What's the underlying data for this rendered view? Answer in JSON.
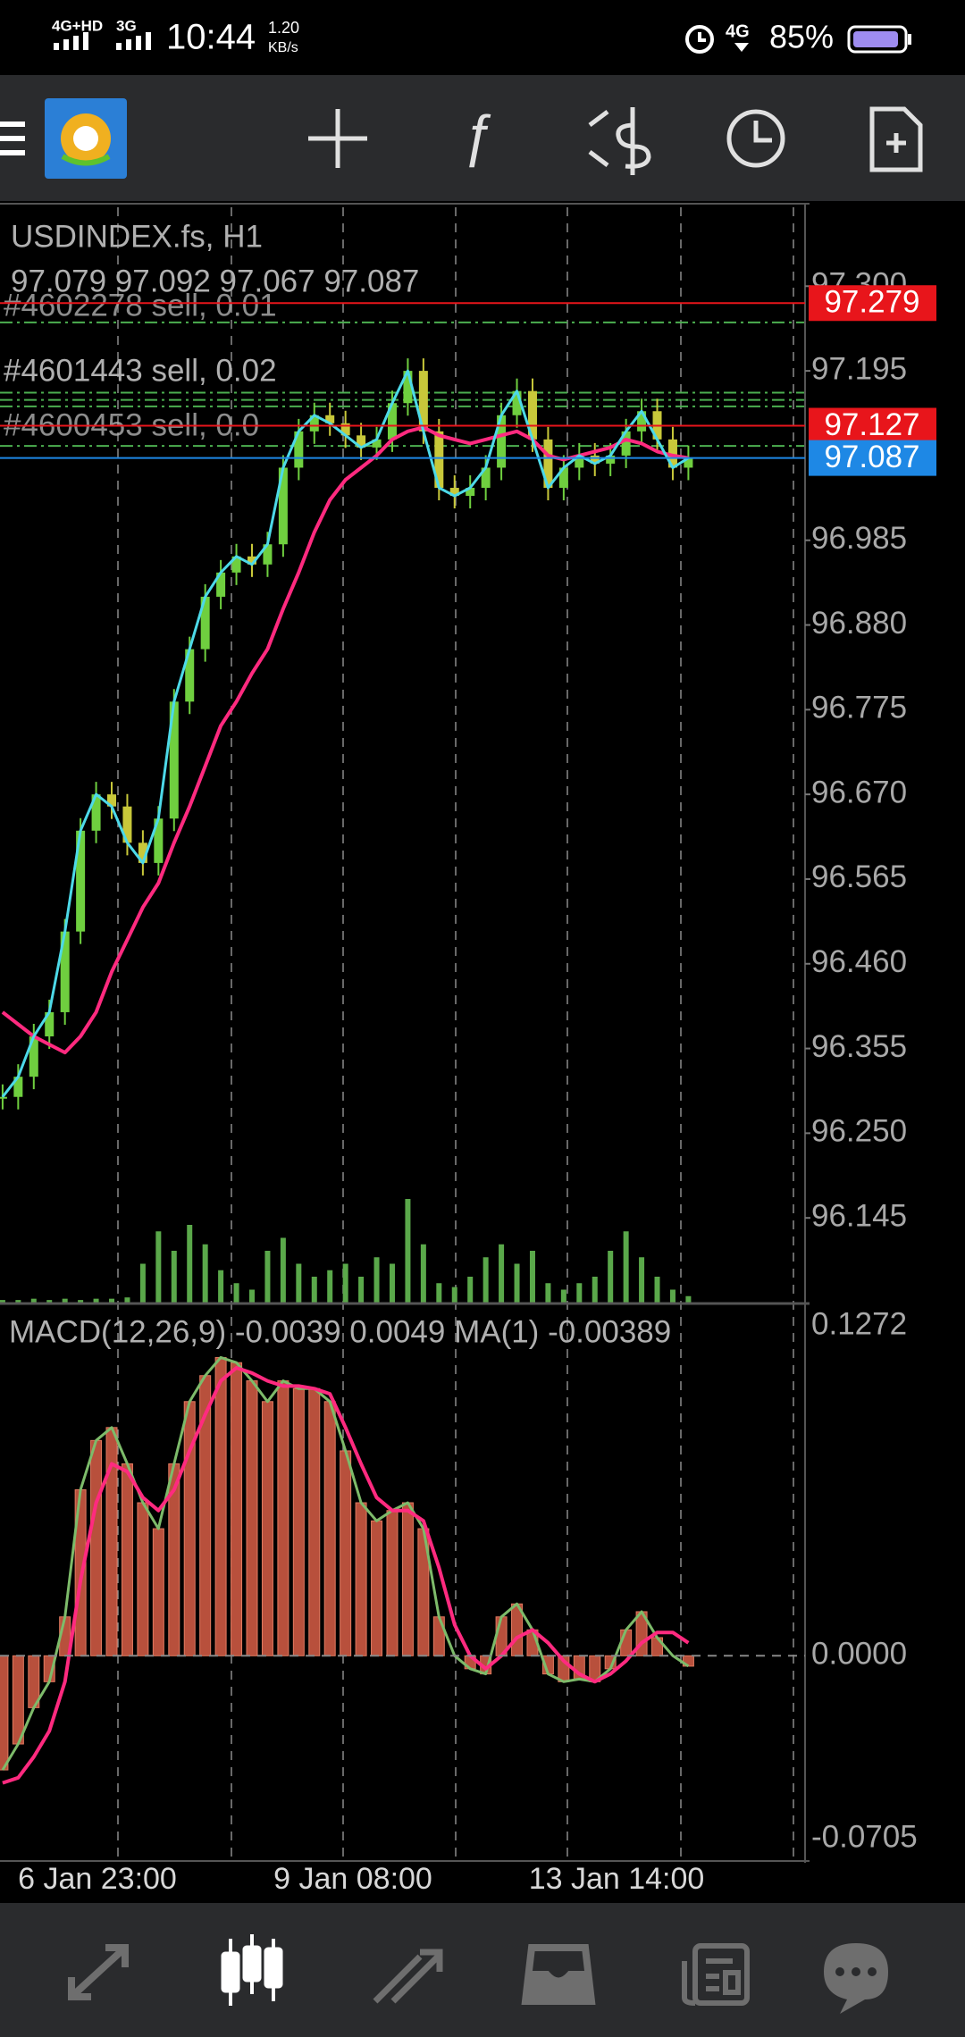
{
  "status_bar": {
    "network1": "4G+HD",
    "network2": "3G",
    "time": "10:44",
    "speed": "1.20",
    "speed_unit": "KB/s",
    "network3": "4G",
    "battery": "85%"
  },
  "chart": {
    "symbol": "USDINDEX.fs, H1",
    "ohlc": "97.079 97.092 97.067 97.087",
    "orders": [
      "#4602278 sell, 0.01",
      "#4601443 sell, 0.02",
      "#4600453 sell, 0.0"
    ],
    "ylim": [
      96.04,
      97.4
    ],
    "yticks": [
      {
        "value": 97.3,
        "label": "97.300"
      },
      97.195,
      96.985,
      {
        "value": 96.88,
        "label": "96.880"
      },
      96.775,
      {
        "value": 96.67,
        "label": "96.670"
      },
      96.565,
      {
        "value": 96.46,
        "label": "96.460"
      },
      96.355,
      {
        "value": 96.25,
        "label": "96.250"
      },
      96.145
    ],
    "price_lines": [
      {
        "value": 97.279,
        "color": "#e8151b"
      },
      {
        "value": 97.127,
        "color": "#e8151b"
      },
      {
        "value": 97.087,
        "color": "#1e88e5"
      }
    ],
    "level_lines": [
      97.255,
      97.168,
      97.159,
      97.151,
      97.102
    ],
    "close": [
      96.295,
      96.32,
      96.37,
      96.4,
      96.5,
      96.625,
      96.67,
      96.655,
      96.61,
      96.585,
      96.64,
      96.785,
      96.85,
      96.915,
      96.945,
      96.965,
      96.955,
      96.98,
      97.075,
      97.12,
      97.14,
      97.13,
      97.115,
      97.1,
      97.11,
      97.155,
      97.195,
      97.12,
      97.05,
      97.04,
      97.05,
      97.075,
      97.14,
      97.17,
      97.11,
      97.05,
      97.075,
      97.09,
      97.08,
      97.09,
      97.12,
      97.145,
      97.11,
      97.075,
      97.087
    ],
    "ma": [
      96.4,
      96.385,
      96.37,
      96.36,
      96.35,
      96.37,
      96.4,
      96.45,
      96.49,
      96.53,
      96.56,
      96.61,
      96.655,
      96.705,
      96.755,
      96.785,
      96.82,
      96.85,
      96.9,
      96.945,
      96.995,
      97.035,
      97.06,
      97.075,
      97.09,
      97.11,
      97.12,
      97.125,
      97.115,
      97.11,
      97.105,
      97.11,
      97.115,
      97.12,
      97.11,
      97.09,
      97.085,
      97.09,
      97.095,
      97.1,
      97.11,
      97.105,
      97.095,
      97.09,
      97.087
    ],
    "volume": [
      2,
      2,
      3,
      2,
      3,
      2,
      3,
      3,
      4,
      30,
      55,
      40,
      60,
      45,
      25,
      15,
      10,
      40,
      50,
      30,
      20,
      25,
      30,
      20,
      35,
      30,
      80,
      45,
      15,
      12,
      20,
      35,
      45,
      30,
      40,
      15,
      10,
      15,
      20,
      40,
      55,
      35,
      20,
      10,
      5
    ],
    "dates": [
      "6 Jan 23:00",
      "9 Jan 08:00",
      "13 Jan 14:00"
    ],
    "macd": {
      "label": "MACD(12,26,9) -0.0039 0.0049 MA(1) -0.00389",
      "ylim": [
        -0.0705,
        0.1272
      ],
      "yticks": [
        0.1272,
        {
          "value": 0,
          "label": "0.0000"
        },
        -0.0705
      ],
      "histogram": [
        -0.044,
        -0.034,
        -0.02,
        -0.01,
        0.015,
        0.064,
        0.083,
        0.088,
        0.074,
        0.059,
        0.049,
        0.074,
        0.098,
        0.108,
        0.115,
        0.113,
        0.106,
        0.098,
        0.106,
        0.103,
        0.103,
        0.098,
        0.079,
        0.059,
        0.052,
        0.056,
        0.059,
        0.049,
        0.015,
        0,
        -0.005,
        -0.007,
        0.015,
        0.02,
        0.01,
        -0.007,
        -0.01,
        -0.009,
        -0.01,
        -0.005,
        0.01,
        0.017,
        0.007,
        0,
        -0.004
      ],
      "signal": [
        -0.049,
        -0.047,
        -0.039,
        -0.029,
        -0.01,
        0.029,
        0.059,
        0.074,
        0.071,
        0.061,
        0.056,
        0.064,
        0.079,
        0.093,
        0.106,
        0.111,
        0.109,
        0.106,
        0.104,
        0.104,
        0.103,
        0.101,
        0.088,
        0.074,
        0.061,
        0.056,
        0.056,
        0.052,
        0.034,
        0.012,
        0,
        -0.005,
        0,
        0.007,
        0.01,
        0.005,
        -0.002,
        -0.007,
        -0.01,
        -0.007,
        -0.002,
        0.005,
        0.009,
        0.009,
        0.005
      ]
    }
  }
}
